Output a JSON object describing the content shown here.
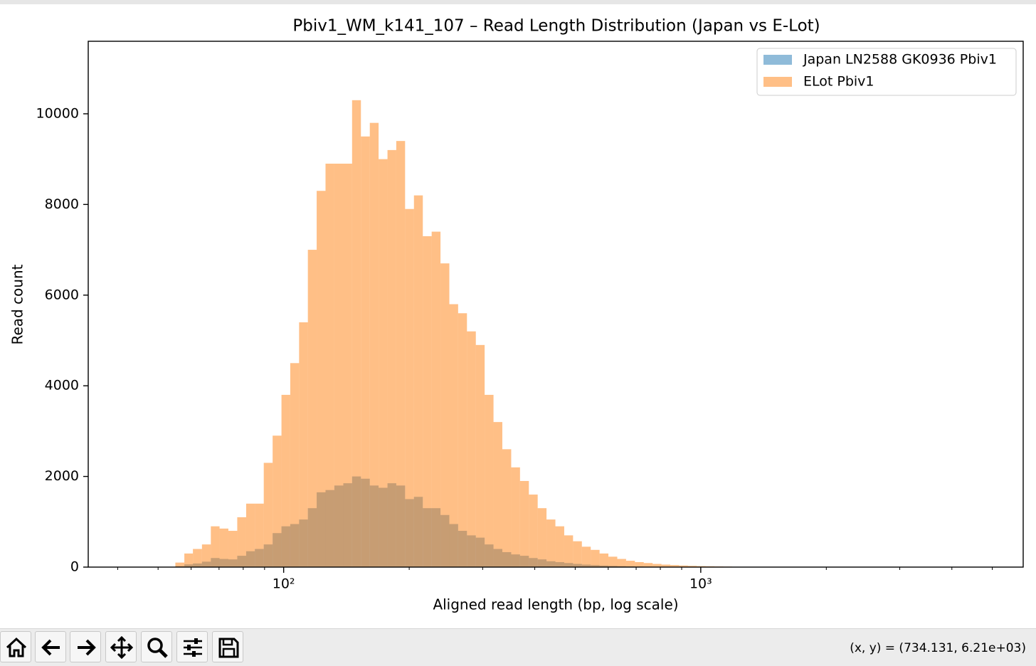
{
  "chart_data": {
    "type": "histogram",
    "title": "Pbiv1_WM_k141_107 – Read Length Distribution (Japan vs E-Lot)",
    "x_label": "Aligned read length (bp, log scale)",
    "y_label": "Read count",
    "x_scale": "log",
    "xlim": [
      34,
      5930
    ],
    "ylim": [
      0,
      11600
    ],
    "xticks": [
      {
        "value": 100,
        "label": "10²"
      },
      {
        "value": 1000,
        "label": "10³"
      }
    ],
    "x_minor_ticks": [
      40,
      50,
      60,
      70,
      80,
      90,
      200,
      300,
      400,
      500,
      600,
      700,
      800,
      900,
      2000,
      3000,
      4000,
      5000
    ],
    "yticks": [
      0,
      2000,
      4000,
      6000,
      8000,
      10000
    ],
    "grid": false,
    "legend_position": "upper right",
    "alpha": 0.5,
    "bins": [
      55.0,
      57.8,
      60.6,
      63.7,
      66.9,
      70.2,
      73.7,
      77.4,
      81.3,
      85.3,
      89.6,
      94.1,
      98.8,
      103.7,
      108.9,
      114.3,
      120.0,
      126.0,
      132.3,
      139.0,
      145.9,
      153.2,
      160.9,
      168.9,
      177.4,
      186.2,
      195.5,
      205.3,
      215.6,
      226.4,
      237.7,
      249.6,
      262.0,
      275.1,
      288.9,
      303.3,
      318.5,
      334.4,
      351.2,
      368.7,
      387.2,
      406.5,
      426.8,
      448.2,
      470.6,
      494.1,
      518.8,
      544.8,
      572.0,
      600.6,
      630.7,
      662.2,
      695.3,
      730.1,
      766.6,
      804.9,
      845.2,
      887.4,
      931.8,
      978.4,
      1027.3,
      1078.7,
      1132.6,
      1189.2,
      1248.7,
      1311.1
    ],
    "series": [
      {
        "name": "Japan LN2588 GK0936 Pbiv1",
        "color": "#1f77b4",
        "values": [
          20,
          60,
          80,
          120,
          200,
          180,
          170,
          250,
          350,
          400,
          500,
          750,
          900,
          950,
          1050,
          1300,
          1650,
          1700,
          1800,
          1850,
          2000,
          1950,
          1800,
          1750,
          1850,
          1800,
          1500,
          1550,
          1300,
          1300,
          1150,
          950,
          800,
          700,
          650,
          500,
          400,
          330,
          280,
          250,
          200,
          170,
          130,
          110,
          90,
          70,
          55,
          45,
          35,
          28,
          22,
          17,
          14,
          11,
          9,
          7,
          6,
          5,
          4,
          3,
          3,
          2,
          2,
          1,
          1
        ]
      },
      {
        "name": "ELot Pbiv1",
        "color": "#ff7f0e",
        "values": [
          100,
          300,
          400,
          500,
          900,
          850,
          800,
          1100,
          1400,
          1400,
          2300,
          2900,
          3800,
          4500,
          5400,
          7000,
          8300,
          8900,
          8900,
          8900,
          10300,
          9500,
          9800,
          9000,
          9200,
          9400,
          7900,
          8200,
          7300,
          7400,
          6700,
          5800,
          5600,
          5200,
          4900,
          3800,
          3200,
          2600,
          2200,
          1900,
          1600,
          1300,
          1050,
          900,
          700,
          570,
          450,
          380,
          300,
          230,
          180,
          140,
          110,
          90,
          70,
          55,
          45,
          35,
          28,
          22,
          18,
          14,
          11,
          8,
          6
        ]
      }
    ]
  },
  "toolbar": {
    "status": "(x, y) = (734.131, 6.21e+03)"
  }
}
